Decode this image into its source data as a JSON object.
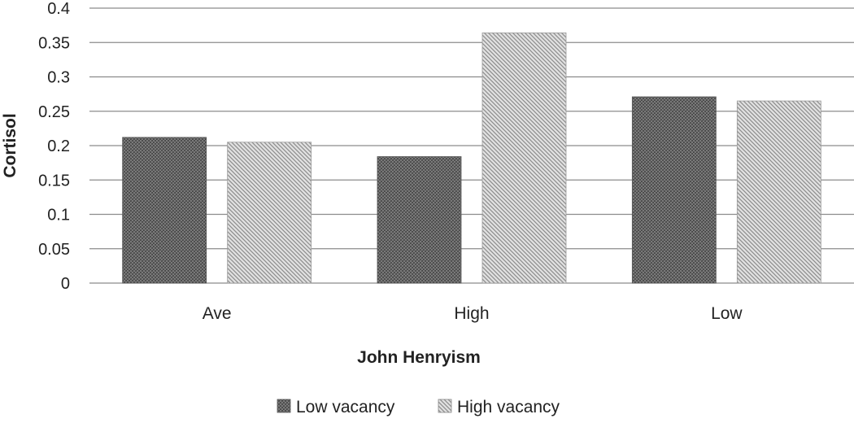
{
  "chart_data": {
    "type": "bar",
    "categories": [
      "Ave",
      "High",
      "Low"
    ],
    "series": [
      {
        "name": "Low vacancy",
        "values": [
          0.212,
          0.184,
          0.271
        ],
        "pattern": "dense-crosshatch",
        "color": "#5f5f5f"
      },
      {
        "name": "High vacancy",
        "values": [
          0.205,
          0.364,
          0.265
        ],
        "pattern": "diagonal-hatch",
        "color": "#c9c9c9"
      }
    ],
    "title": "",
    "xlabel": "John Henryism",
    "ylabel": "Cortisol",
    "ylim": [
      0,
      0.4
    ],
    "yticks": [
      "0",
      "0.05",
      "0.1",
      "0.15",
      "0.2",
      "0.25",
      "0.3",
      "0.35",
      "0.4"
    ],
    "grid": true,
    "legend_position": "bottom"
  }
}
